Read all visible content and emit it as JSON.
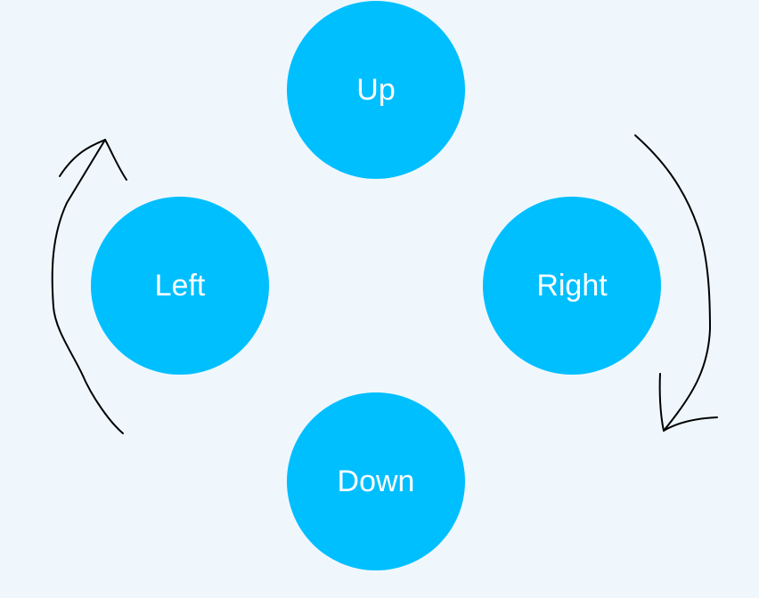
{
  "colors": {
    "background": "#eff7fd",
    "node_fill": "#00bfff",
    "node_text": "#ffffff",
    "arrow_stroke": "#000000"
  },
  "nodes": {
    "up": {
      "label": "Up"
    },
    "left": {
      "label": "Left"
    },
    "right": {
      "label": "Right"
    },
    "down": {
      "label": "Down"
    }
  },
  "arrows": [
    {
      "name": "left-arrow",
      "direction": "upward",
      "style": "hand-drawn"
    },
    {
      "name": "right-arrow",
      "direction": "downward",
      "style": "hand-drawn"
    }
  ]
}
